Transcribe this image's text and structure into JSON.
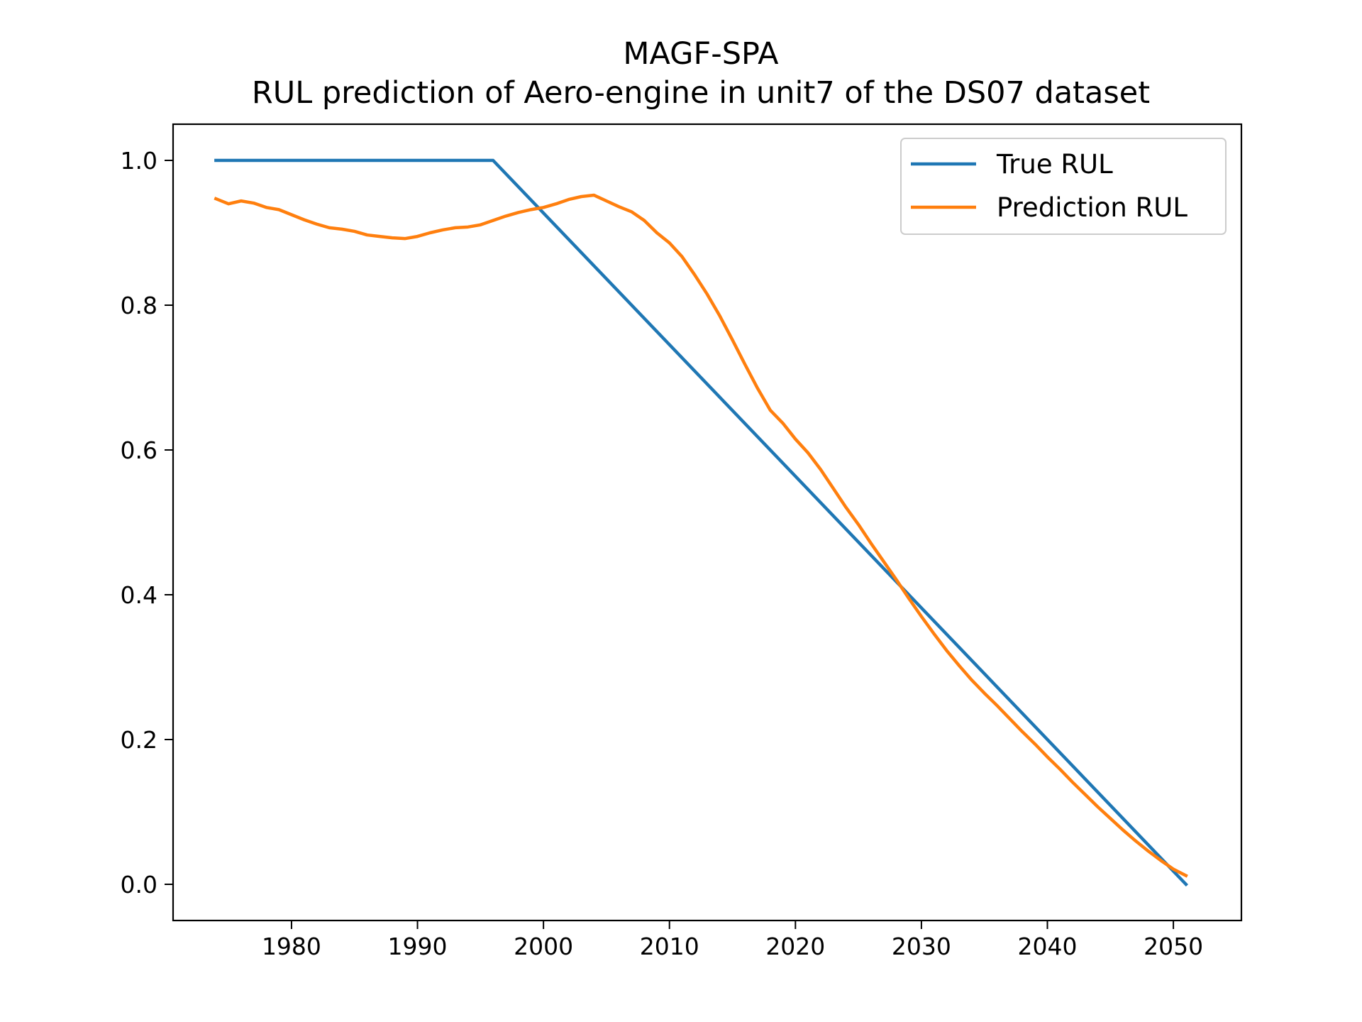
{
  "chart_data": {
    "type": "line",
    "title": "MAGF-SPA",
    "subtitle": "RUL prediction of Aero-engine in unit7 of the DS07 dataset",
    "xlabel": "",
    "ylabel": "",
    "xlim": [
      1970.6,
      2055.4
    ],
    "ylim": [
      -0.05,
      1.05
    ],
    "x_ticks": [
      1980,
      1990,
      2000,
      2010,
      2020,
      2030,
      2040,
      2050
    ],
    "y_ticks": [
      0.0,
      0.2,
      0.4,
      0.6,
      0.8,
      1.0
    ],
    "x_tick_labels": [
      "1980",
      "1990",
      "2000",
      "2010",
      "2020",
      "2030",
      "2040",
      "2050"
    ],
    "y_tick_labels": [
      "0.0",
      "0.2",
      "0.4",
      "0.6",
      "0.8",
      "1.0"
    ],
    "grid": false,
    "legend_position": "top-right",
    "series": [
      {
        "name": "True RUL",
        "color": "#1f77b4",
        "x": [
          1974,
          1996,
          2051
        ],
        "y": [
          1.0,
          1.0,
          0.0
        ]
      },
      {
        "name": "Prediction RUL",
        "color": "#ff7f0e",
        "x": [
          1974,
          1975,
          1976,
          1977,
          1978,
          1979,
          1980,
          1981,
          1982,
          1983,
          1984,
          1985,
          1986,
          1987,
          1988,
          1989,
          1990,
          1991,
          1992,
          1993,
          1994,
          1995,
          1996,
          1997,
          1998,
          1999,
          2000,
          2001,
          2002,
          2003,
          2004,
          2005,
          2006,
          2007,
          2008,
          2009,
          2010,
          2011,
          2012,
          2013,
          2014,
          2015,
          2016,
          2017,
          2018,
          2019,
          2020,
          2021,
          2022,
          2023,
          2024,
          2025,
          2026,
          2027,
          2028,
          2029,
          2030,
          2031,
          2032,
          2033,
          2034,
          2035,
          2036,
          2037,
          2038,
          2039,
          2040,
          2041,
          2042,
          2043,
          2044,
          2045,
          2046,
          2047,
          2048,
          2049,
          2050,
          2051
        ],
        "y": [
          0.947,
          0.94,
          0.944,
          0.941,
          0.935,
          0.932,
          0.925,
          0.918,
          0.912,
          0.907,
          0.905,
          0.902,
          0.897,
          0.895,
          0.893,
          0.892,
          0.895,
          0.9,
          0.904,
          0.907,
          0.908,
          0.911,
          0.917,
          0.923,
          0.928,
          0.932,
          0.935,
          0.94,
          0.946,
          0.95,
          0.952,
          0.944,
          0.936,
          0.929,
          0.917,
          0.9,
          0.886,
          0.867,
          0.842,
          0.815,
          0.785,
          0.752,
          0.718,
          0.685,
          0.655,
          0.637,
          0.615,
          0.596,
          0.573,
          0.547,
          0.521,
          0.497,
          0.471,
          0.446,
          0.421,
          0.395,
          0.37,
          0.346,
          0.323,
          0.302,
          0.282,
          0.264,
          0.247,
          0.229,
          0.211,
          0.194,
          0.176,
          0.159,
          0.141,
          0.124,
          0.107,
          0.091,
          0.075,
          0.06,
          0.046,
          0.033,
          0.021,
          0.012
        ]
      }
    ]
  }
}
